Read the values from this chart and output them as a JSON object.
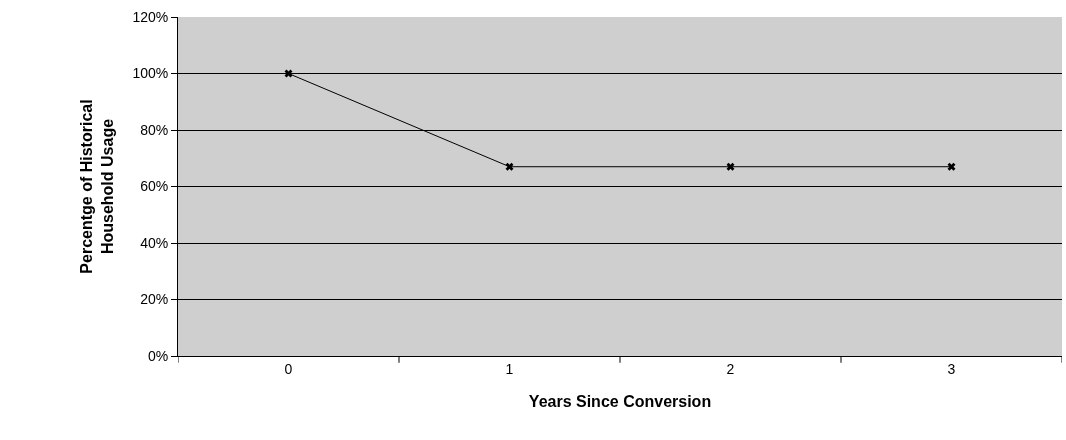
{
  "chart_data": {
    "type": "line",
    "xlabel": "Years Since Conversion",
    "ylabel": "Percentge of Historical Household Usage",
    "categories": [
      "0",
      "1",
      "2",
      "3"
    ],
    "series": [
      {
        "color": "#000000",
        "values": [
          100,
          67,
          67,
          67
        ]
      }
    ],
    "ylim": [
      0,
      120
    ],
    "yticks": [
      {
        "value": 0,
        "label": "0%"
      },
      {
        "value": 20,
        "label": "20%"
      },
      {
        "value": 40,
        "label": "40%"
      },
      {
        "value": 60,
        "label": "60%"
      },
      {
        "value": 80,
        "label": "80%"
      },
      {
        "value": 100,
        "label": "100%"
      },
      {
        "value": 120,
        "label": "120%"
      }
    ],
    "grid": "y",
    "marker": "cross",
    "line_style": "solid"
  }
}
